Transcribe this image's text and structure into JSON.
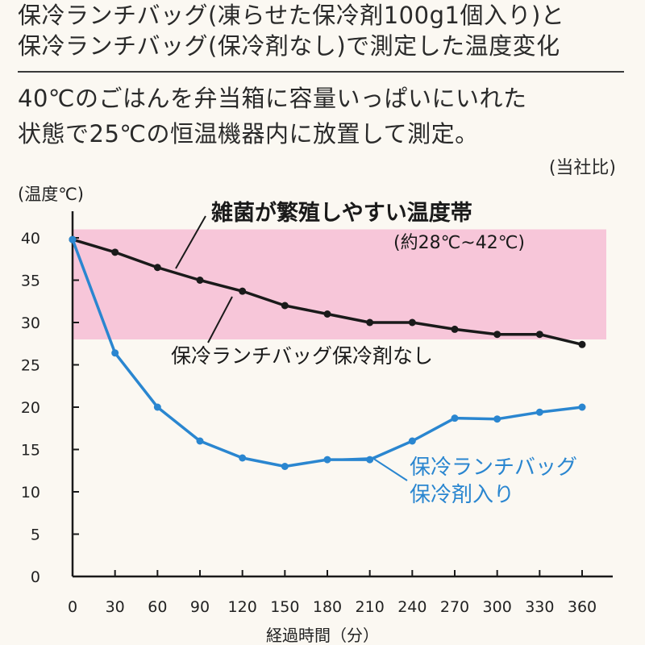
{
  "header": {
    "title_line1": "保冷ランチバッグ(凍らせた保冷剤100g1個入り)と",
    "title_line2": "保冷ランチバッグ(保冷剤なし)で測定した温度変化",
    "description_line1": "40℃のごはんを弁当箱に容量いっぱいにいれた",
    "description_line2": "状態で25℃の恒温機器内に放置して測定。",
    "note": "(当社比)"
  },
  "colors": {
    "background": "#fbf8f2",
    "band": "#f7c6d9",
    "series_no_ice": "#1a1a1a",
    "series_with_ice": "#2a86d0",
    "axis": "#1a1a1a"
  },
  "chart_data": {
    "type": "line",
    "title": "",
    "xlabel": "経過時間（分）",
    "ylabel": "(温度℃)",
    "xlim": [
      0,
      360
    ],
    "ylim": [
      0,
      40
    ],
    "x": [
      0,
      30,
      60,
      90,
      120,
      150,
      180,
      210,
      240,
      270,
      300,
      330,
      360
    ],
    "y_ticks": [
      0,
      5,
      10,
      15,
      20,
      25,
      30,
      35,
      40
    ],
    "grid": false,
    "band": {
      "range": [
        28,
        41
      ],
      "label": "雑菌が繁殖しやすい温度帯",
      "sublabel": "(約28℃~42℃)"
    },
    "series": [
      {
        "name": "保冷ランチバッグ保冷剤なし",
        "values": [
          39.8,
          38.3,
          36.5,
          35.0,
          33.7,
          32.0,
          31.0,
          30.0,
          30.0,
          29.2,
          28.6,
          28.6,
          27.4
        ]
      },
      {
        "name": "保冷ランチバッグ 保冷剤入り",
        "name_line1": "保冷ランチバッグ",
        "name_line2": "保冷剤入り",
        "values": [
          39.8,
          26.4,
          20.0,
          16.0,
          14.0,
          13.0,
          13.8,
          13.8,
          16.0,
          18.7,
          18.6,
          19.4,
          20.0
        ]
      }
    ]
  }
}
